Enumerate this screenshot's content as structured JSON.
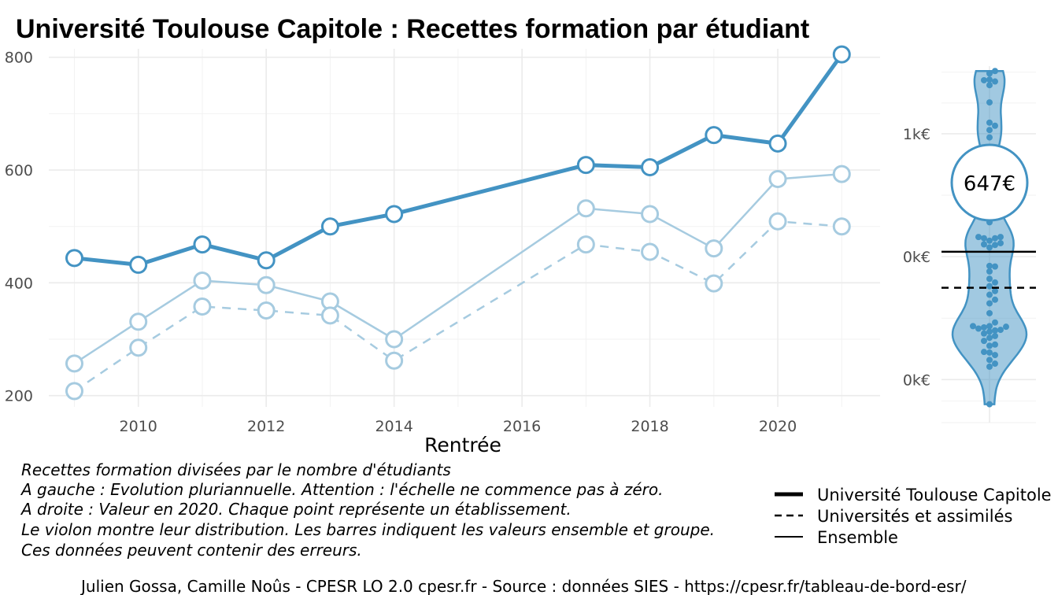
{
  "title": "Université Toulouse Capitole  :  Recettes formation par étudiant",
  "chart_data": [
    {
      "type": "line",
      "xlabel": "Rentrée",
      "ylabel": "",
      "xlim": [
        2008.6,
        2021.6
      ],
      "ylim": [
        180,
        815
      ],
      "x_ticks": [
        2010,
        2012,
        2014,
        2016,
        2018,
        2020
      ],
      "y_ticks": [
        200,
        400,
        600,
        800
      ],
      "grid": true,
      "series": [
        {
          "name": "Université Toulouse Capitole",
          "style": "thick",
          "color": "#4393c3",
          "points": [
            [
              2009,
              444
            ],
            [
              2010,
              432
            ],
            [
              2011,
              468
            ],
            [
              2012,
              440
            ],
            [
              2013,
              500
            ],
            [
              2014,
              522
            ],
            [
              2017,
              609
            ],
            [
              2018,
              605
            ],
            [
              2019,
              662
            ],
            [
              2020,
              647
            ],
            [
              2021,
              805
            ]
          ]
        },
        {
          "name": "Universités et assimilés",
          "style": "dashed",
          "color": "#a6cbe0",
          "points": [
            [
              2009,
              208
            ],
            [
              2010,
              285
            ],
            [
              2011,
              358
            ],
            [
              2012,
              351
            ],
            [
              2013,
              342
            ],
            [
              2014,
              262
            ],
            [
              2017,
              468
            ],
            [
              2018,
              455
            ],
            [
              2019,
              399
            ],
            [
              2020,
              509
            ],
            [
              2021,
              500
            ]
          ]
        },
        {
          "name": "Ensemble",
          "style": "thin",
          "color": "#a6cbe0",
          "points": [
            [
              2009,
              257
            ],
            [
              2010,
              331
            ],
            [
              2011,
              404
            ],
            [
              2012,
              396
            ],
            [
              2013,
              367
            ],
            [
              2014,
              300
            ],
            [
              2017,
              532
            ],
            [
              2018,
              522
            ],
            [
              2019,
              461
            ],
            [
              2020,
              584
            ],
            [
              2021,
              593
            ]
          ]
        }
      ]
    },
    {
      "type": "violin",
      "year": 2020,
      "y_ticks": [
        {
          "label": "1k€",
          "value": 1000
        },
        {
          "label": "0k€",
          "value": 800
        },
        {
          "label": "0k€",
          "value": 600
        }
      ],
      "ylim": [
        530,
        1110
      ],
      "highlight_value": 647,
      "highlight_label": "647€",
      "group_value": 807,
      "ensemble_value": 808,
      "color": "#4393c3",
      "points": [
        1102,
        1098,
        1087,
        1088,
        1085,
        1079,
        1051,
        1018,
        1013,
        1006,
        994,
        975,
        906,
        873,
        856,
        832,
        830,
        832,
        830,
        826,
        822,
        820,
        819,
        815,
        785,
        784,
        776,
        764,
        758,
        752,
        744,
        738,
        730,
        724,
        708,
        693,
        687,
        686,
        687,
        685,
        683,
        681,
        680,
        678,
        675,
        671,
        668,
        663,
        657,
        655,
        645,
        644,
        640,
        632,
        626,
        621,
        560
      ]
    }
  ],
  "notes": [
    "Recettes formation divisées par le nombre d'étudiants",
    "A gauche : Evolution pluriannuelle. Attention : l'échelle ne commence pas à zéro.",
    "A droite : Valeur en 2020. Chaque point représente un établissement.",
    "Le violon montre leur distribution. Les barres indiquent les valeurs ensemble et groupe.",
    "Ces données peuvent contenir des erreurs."
  ],
  "legend": [
    {
      "label": "Université Toulouse Capitole",
      "style": "thick"
    },
    {
      "label": "Universités et assimilés",
      "style": "dashed"
    },
    {
      "label": "Ensemble",
      "style": "thin"
    }
  ],
  "caption": "Julien Gossa, Camille Noûs - CPESR LO 2.0 cpesr.fr - Source : données SIES - https://cpesr.fr/tableau-de-bord-esr/"
}
